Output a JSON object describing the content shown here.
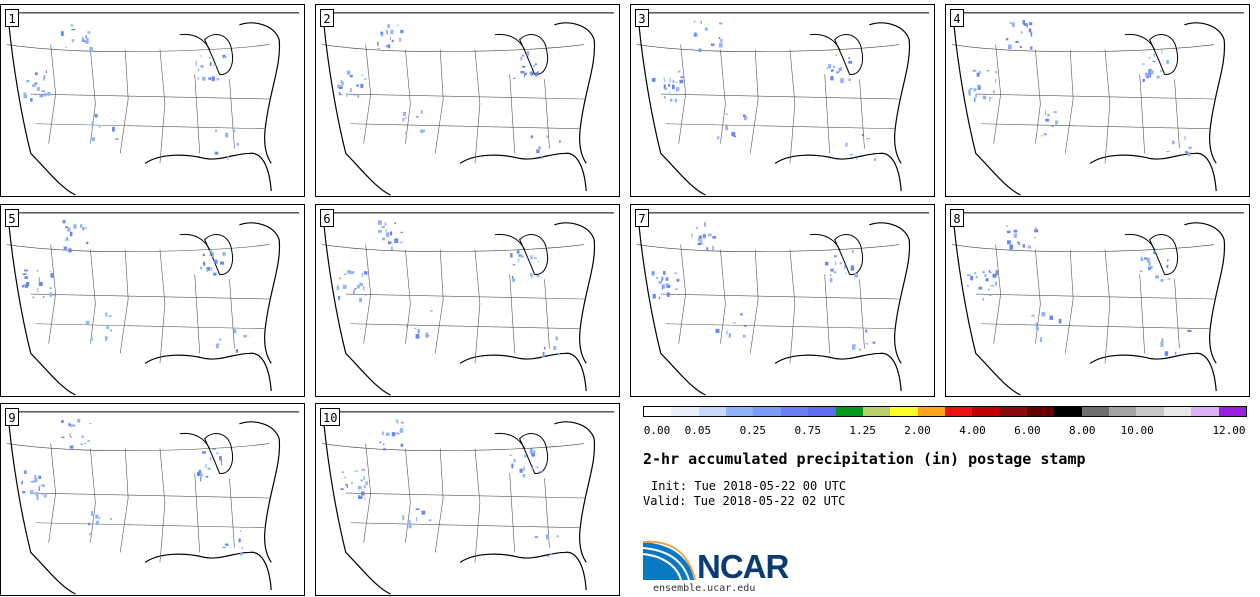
{
  "panels": [
    {
      "number": "1"
    },
    {
      "number": "2"
    },
    {
      "number": "3"
    },
    {
      "number": "4"
    },
    {
      "number": "5"
    },
    {
      "number": "6"
    },
    {
      "number": "7"
    },
    {
      "number": "8"
    },
    {
      "number": "9"
    },
    {
      "number": "10"
    }
  ],
  "colorbar": {
    "colors": [
      "#ffffff",
      "#e8f0fc",
      "#c7d8fa",
      "#8fb2f7",
      "#7a9cf6",
      "#6a7ff2",
      "#5f6ef0",
      "#019a1e",
      "#b6d06a",
      "#ffff22",
      "#ffa51c",
      "#ef0f0f",
      "#c40000",
      "#8c0a0a",
      "#640000",
      "#000000",
      "#6f6f6f",
      "#a3a3a3",
      "#c8c8c8",
      "#e8e8e8",
      "#dbb3f3",
      "#9b1fe3"
    ],
    "tick_labels": [
      "0.00",
      "0.05",
      "0.25",
      "0.75",
      "1.25",
      "2.00",
      "4.00",
      "6.00",
      "8.00",
      "10.00",
      "12.00"
    ]
  },
  "title": "2-hr accumulated precipitation (in) postage stamp",
  "init": "Init: Tue 2018-05-22 00 UTC",
  "valid": "Valid: Tue 2018-05-22 02 UTC",
  "logo": {
    "text": "NCAR",
    "url": "ensemble.ucar.edu"
  }
}
